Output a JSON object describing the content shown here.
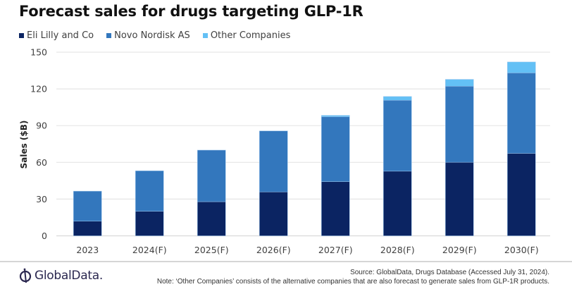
{
  "chart_data": {
    "type": "bar",
    "stacked": true,
    "title": "Forecast sales for drugs targeting GLP-1R",
    "xlabel": "",
    "ylabel": "Sales ($B)",
    "ylim": [
      0,
      150
    ],
    "yticks": [
      0,
      30,
      60,
      90,
      120,
      150
    ],
    "grid": true,
    "legend_position": "top-left",
    "categories": [
      "2023",
      "2024(F)",
      "2025(F)",
      "2026(F)",
      "2027(F)",
      "2028(F)",
      "2029(F)",
      "2030(F)"
    ],
    "series": [
      {
        "name": "Eli Lilly and Co",
        "color": "#0b2462",
        "values": [
          12.0,
          20.1,
          27.9,
          35.9,
          44.3,
          52.8,
          60.1,
          67.4
        ]
      },
      {
        "name": "Novo Nordisk AS",
        "color": "#3377bd",
        "values": [
          24.5,
          33.0,
          42.1,
          49.8,
          53.0,
          57.9,
          62.1,
          65.7
        ]
      },
      {
        "name": "Other Companies",
        "color": "#63c0f5",
        "values": [
          0.0,
          0.0,
          0.0,
          0.0,
          1.1,
          3.1,
          5.6,
          8.9
        ]
      }
    ]
  },
  "footer": {
    "logo_text": "GlobalData.",
    "source": "Source: GlobalData, Drugs Database (Accessed July 31, 2024).",
    "note": "Note: ‘Other Companies’ consists of the alternative companies that are also forecast to generate sales from GLP-1R products."
  }
}
